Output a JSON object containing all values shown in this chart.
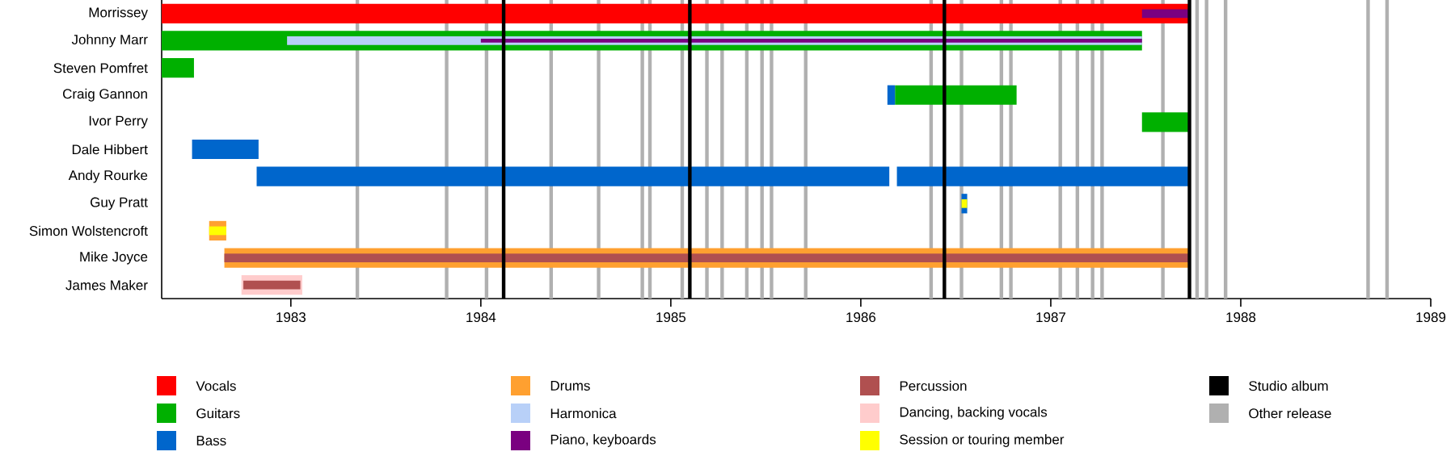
{
  "chart_data": {
    "type": "bar",
    "orientation": "horizontal",
    "legend": "bottom",
    "categories": [
      "Morrissey",
      "Johnny Marr",
      "Steven Pomfret",
      "Craig Gannon",
      "Ivor Perry",
      "Dale Hibbert",
      "Andy Rourke",
      "Guy Pratt",
      "Simon Wolstencroft",
      "Mike Joyce",
      "James Maker"
    ],
    "xlim": [
      1982.32,
      1989
    ],
    "xticks": [
      1983,
      1984,
      1985,
      1986,
      1987,
      1988,
      1989
    ],
    "series": [
      {
        "name": "Vocals",
        "color": "#ff0000",
        "base": [
          1982.32,
          null,
          null,
          null,
          null,
          null,
          null,
          null,
          null,
          null,
          null
        ],
        "values": [
          5.41,
          null,
          null,
          null,
          null,
          null,
          null,
          null,
          null,
          null,
          null
        ]
      },
      {
        "name": "Guitars",
        "color": "#00b000",
        "base": [
          null,
          1982.32,
          1982.32,
          1986.18,
          1987.48,
          null,
          null,
          null,
          null,
          null,
          null
        ],
        "values": [
          null,
          5.16,
          0.17,
          0.64,
          0.25,
          null,
          null,
          null,
          null,
          null,
          null
        ]
      },
      {
        "name": "Bass",
        "color": "#0066cc",
        "base": [
          null,
          null,
          null,
          1986.14,
          null,
          1982.48,
          1982.82,
          1986.53,
          null,
          null,
          null
        ],
        "values": [
          null,
          null,
          null,
          0.04,
          null,
          0.35,
          3.33,
          0.03,
          null,
          null,
          null
        ]
      },
      {
        "name": "Drums",
        "color": "#ffa030",
        "base": [
          null,
          null,
          null,
          null,
          null,
          null,
          null,
          null,
          1982.57,
          1982.65,
          null
        ],
        "values": [
          null,
          null,
          null,
          null,
          null,
          null,
          null,
          null,
          0.09,
          5.08,
          null
        ]
      },
      {
        "name": "Harmonica",
        "color": "#b8d0f8",
        "base": [
          null,
          1982.98,
          null,
          null,
          null,
          null,
          null,
          null,
          null,
          null,
          null
        ],
        "values": [
          null,
          4.5,
          null,
          null,
          null,
          null,
          null,
          null,
          null,
          null,
          null
        ]
      },
      {
        "name": "Piano, keyboards",
        "color": "#7a0080",
        "base": [
          1987.48,
          1984.0,
          null,
          null,
          null,
          null,
          null,
          null,
          null,
          null,
          null
        ],
        "values": [
          0.25,
          3.48,
          null,
          null,
          null,
          null,
          null,
          null,
          null,
          null,
          null
        ]
      },
      {
        "name": "Percussion",
        "color": "#b05050",
        "base": [
          null,
          null,
          null,
          null,
          null,
          null,
          null,
          null,
          null,
          1982.65,
          1982.75
        ],
        "values": [
          null,
          null,
          null,
          null,
          null,
          null,
          null,
          null,
          null,
          5.08,
          0.3
        ]
      },
      {
        "name": "Dancing, backing vocals",
        "color": "#ffcccc",
        "base": [
          null,
          null,
          null,
          null,
          null,
          null,
          null,
          null,
          null,
          null,
          1982.74
        ],
        "values": [
          null,
          null,
          null,
          null,
          null,
          null,
          null,
          null,
          null,
          null,
          0.32
        ]
      },
      {
        "name": "Session or touring member",
        "color": "#ffff00",
        "base": [
          null,
          null,
          null,
          null,
          null,
          null,
          null,
          1986.53,
          1982.57,
          null,
          null
        ],
        "values": [
          null,
          null,
          null,
          null,
          null,
          null,
          null,
          0.03,
          0.09,
          null,
          null
        ]
      },
      {
        "color": "#0066cc",
        "base": [
          null,
          null,
          null,
          null,
          null,
          null,
          1986.19,
          null,
          null,
          null,
          null
        ],
        "values": [
          null,
          null,
          null,
          null,
          null,
          null,
          1.54,
          null,
          null,
          null,
          null
        ]
      }
    ],
    "ref_lines": [
      {
        "axis": "x",
        "value": 1984.12,
        "label": "Studio album",
        "color": "#000000"
      },
      {
        "axis": "x",
        "value": 1985.1,
        "color": "#000000"
      },
      {
        "axis": "x",
        "value": 1986.44,
        "color": "#000000"
      },
      {
        "axis": "x",
        "value": 1987.73,
        "color": "#000000"
      },
      {
        "axis": "x",
        "value": 1983.35,
        "label": "Other release",
        "color": "#b0b0b0"
      },
      {
        "axis": "x",
        "value": 1983.82,
        "color": "#b0b0b0"
      },
      {
        "axis": "x",
        "value": 1984.03,
        "color": "#b0b0b0"
      },
      {
        "axis": "x",
        "value": 1984.37,
        "color": "#b0b0b0"
      },
      {
        "axis": "x",
        "value": 1984.62,
        "color": "#b0b0b0"
      },
      {
        "axis": "x",
        "value": 1984.85,
        "color": "#b0b0b0"
      },
      {
        "axis": "x",
        "value": 1984.89,
        "color": "#b0b0b0"
      },
      {
        "axis": "x",
        "value": 1985.06,
        "color": "#b0b0b0"
      },
      {
        "axis": "x",
        "value": 1985.19,
        "color": "#b0b0b0"
      },
      {
        "axis": "x",
        "value": 1985.27,
        "color": "#b0b0b0"
      },
      {
        "axis": "x",
        "value": 1985.4,
        "color": "#b0b0b0"
      },
      {
        "axis": "x",
        "value": 1985.48,
        "color": "#b0b0b0"
      },
      {
        "axis": "x",
        "value": 1985.53,
        "color": "#b0b0b0"
      },
      {
        "axis": "x",
        "value": 1985.71,
        "color": "#b0b0b0"
      },
      {
        "axis": "x",
        "value": 1986.37,
        "color": "#b0b0b0"
      },
      {
        "axis": "x",
        "value": 1986.53,
        "color": "#b0b0b0"
      },
      {
        "axis": "x",
        "value": 1986.74,
        "color": "#b0b0b0"
      },
      {
        "axis": "x",
        "value": 1986.79,
        "color": "#b0b0b0"
      },
      {
        "axis": "x",
        "value": 1987.05,
        "color": "#b0b0b0"
      },
      {
        "axis": "x",
        "value": 1987.14,
        "color": "#b0b0b0"
      },
      {
        "axis": "x",
        "value": 1987.22,
        "color": "#b0b0b0"
      },
      {
        "axis": "x",
        "value": 1987.27,
        "color": "#b0b0b0"
      },
      {
        "axis": "x",
        "value": 1987.59,
        "color": "#b0b0b0"
      },
      {
        "axis": "x",
        "value": 1987.77,
        "color": "#b0b0b0"
      },
      {
        "axis": "x",
        "value": 1987.82,
        "color": "#b0b0b0"
      },
      {
        "axis": "x",
        "value": 1987.92,
        "color": "#b0b0b0"
      },
      {
        "axis": "x",
        "value": 1988.67,
        "color": "#b0b0b0"
      },
      {
        "axis": "x",
        "value": 1988.77,
        "color": "#b0b0b0"
      }
    ]
  }
}
